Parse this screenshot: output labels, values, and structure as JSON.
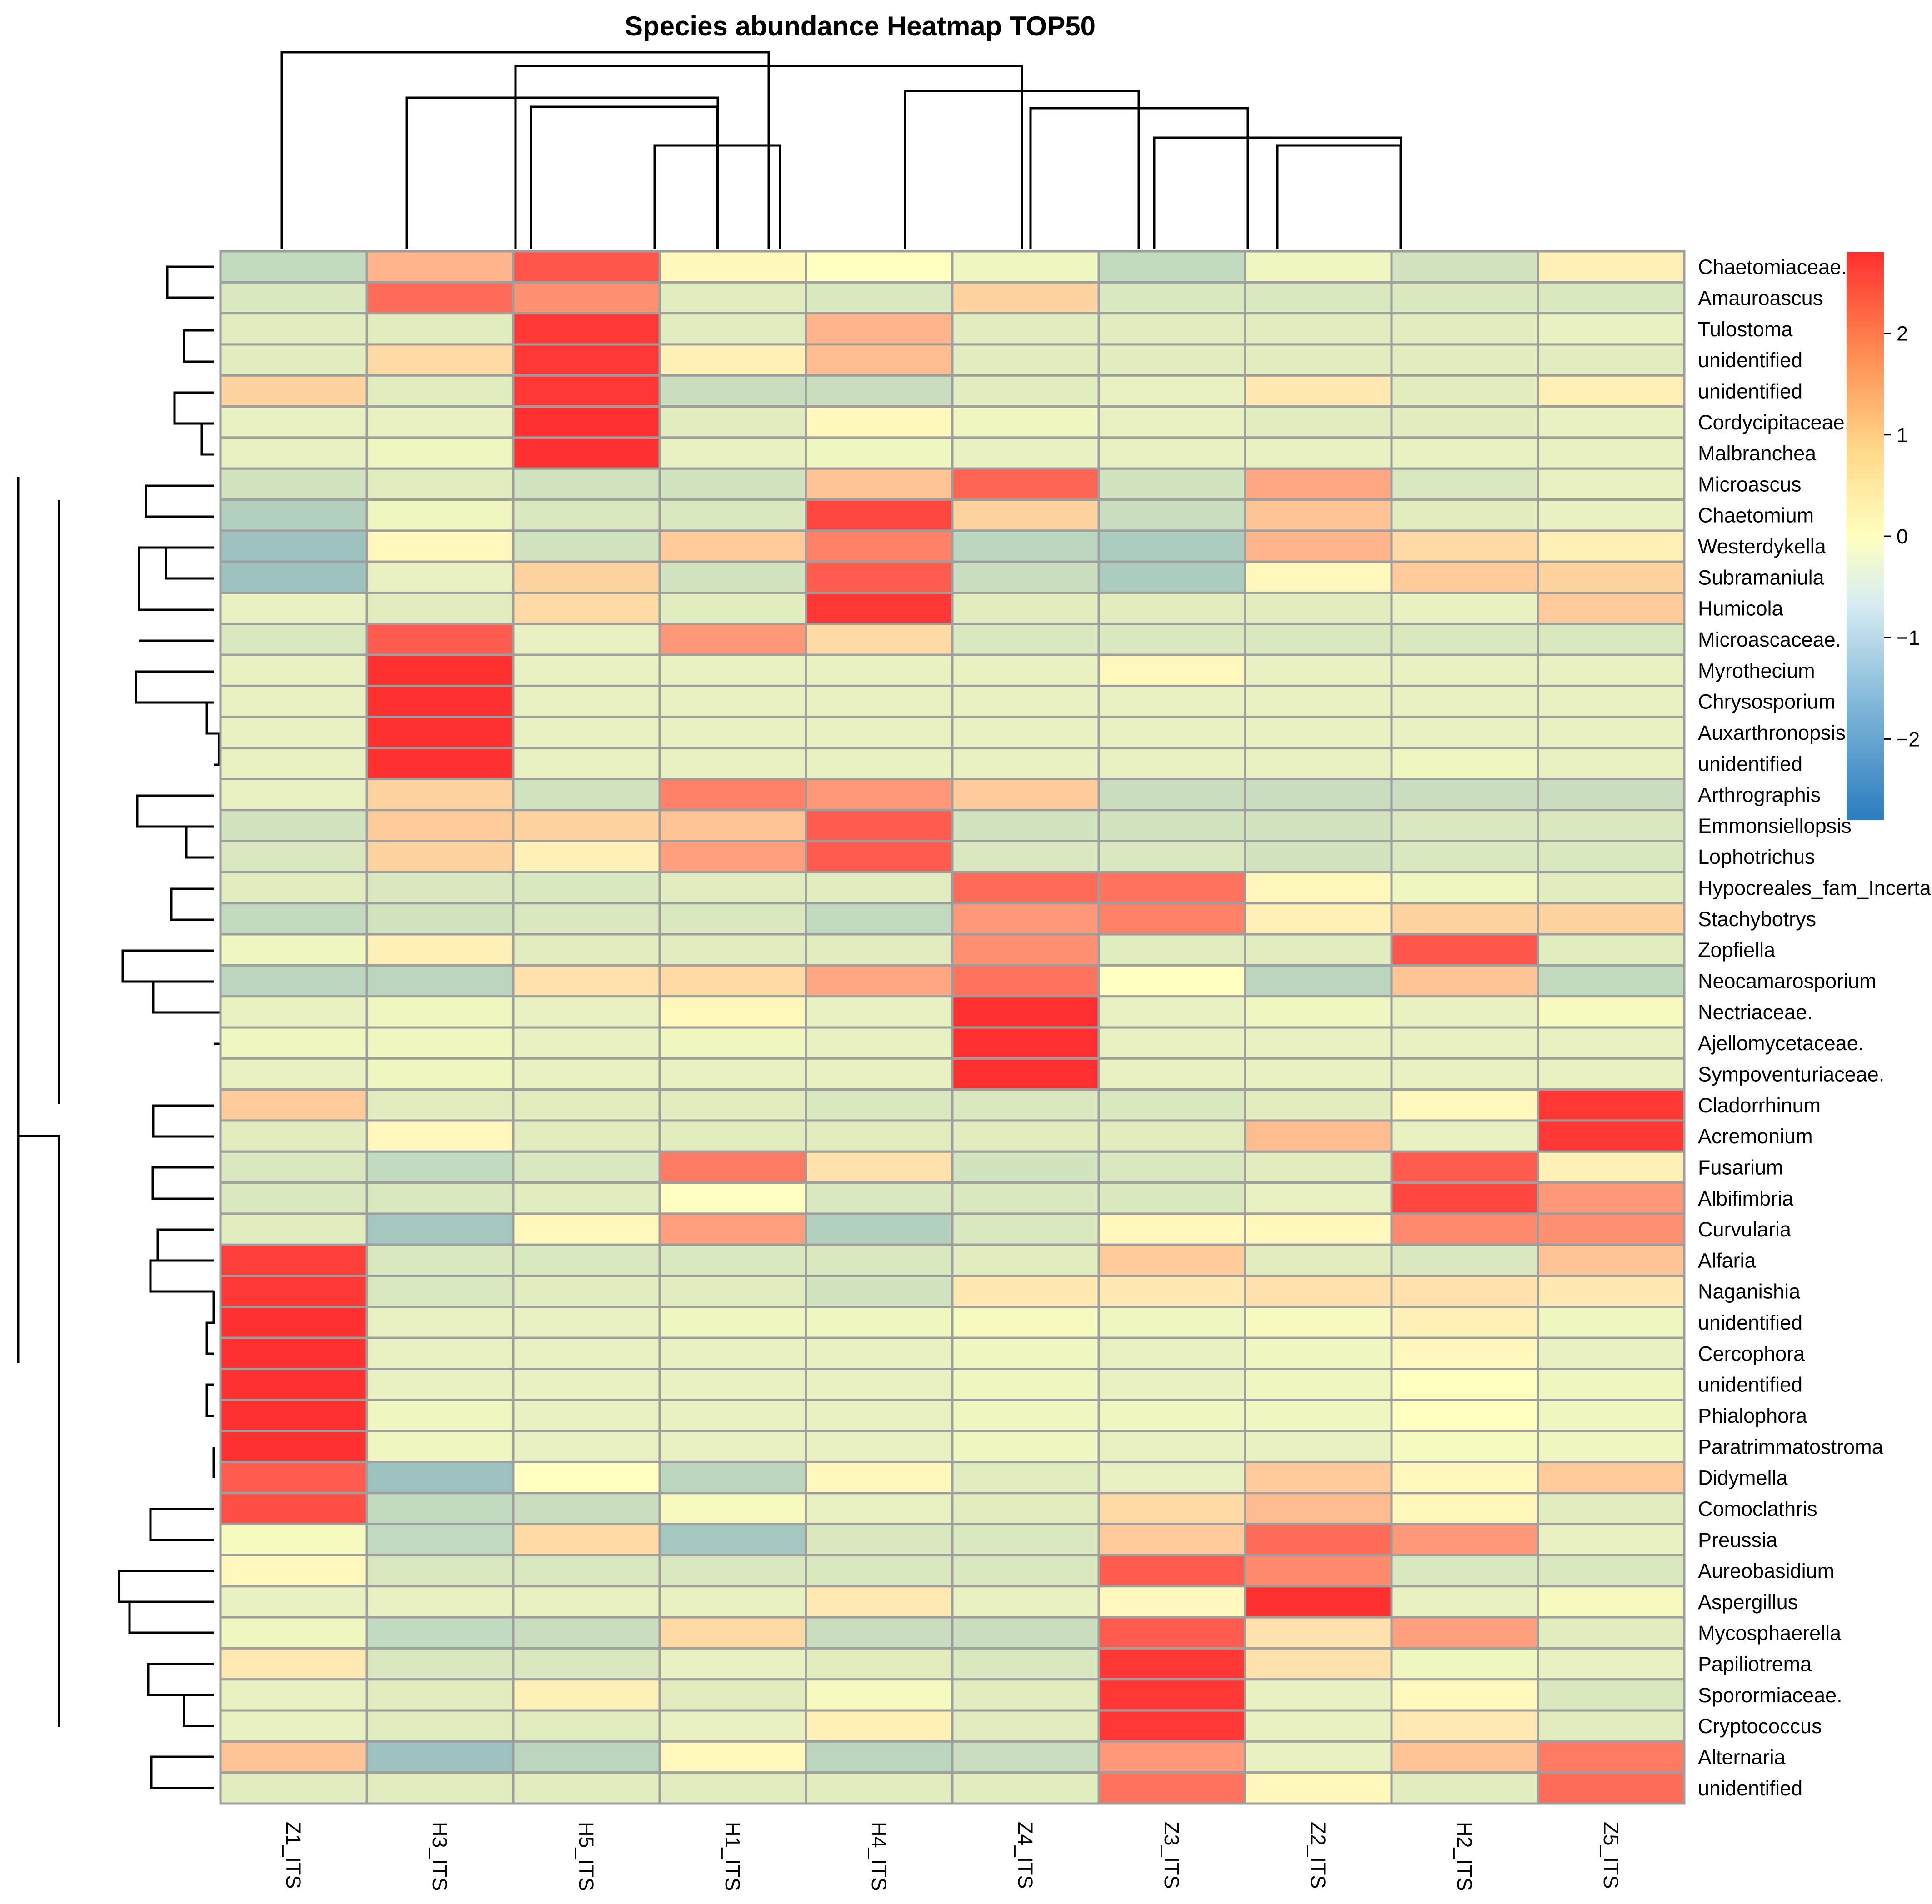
{
  "chart_data": {
    "type": "heatmap",
    "title": "Species abundance Heatmap TOP50",
    "columns": [
      "Z1_ITS",
      "H3_ITS",
      "H5_ITS",
      "H1_ITS",
      "H4_ITS",
      "Z4_ITS",
      "Z3_ITS",
      "Z2_ITS",
      "H2_ITS",
      "Z5_ITS"
    ],
    "rows": [
      "Chaetomiaceae.",
      "Amauroascus",
      "Tulostoma",
      "unidentified",
      "unidentified",
      "Cordycipitaceae.",
      "Malbranchea",
      "Microascus",
      "Chaetomium",
      "Westerdykella",
      "Subramaniula",
      "Humicola",
      "Microascaceae.",
      "Myrothecium",
      "Chrysosporium",
      "Auxarthronopsis",
      "unidentified",
      "Arthrographis",
      "Emmonsiellopsis",
      "Lophotrichus",
      "Hypocreales_fam_Incertae_sedis.",
      "Stachybotrys",
      "Zopfiella",
      "Neocamarosporium",
      "Nectriaceae.",
      "Ajellomycetaceae.",
      "Sympoventuriaceae.",
      "Cladorrhinum",
      "Acremonium",
      "Fusarium",
      "Albifimbria",
      "Curvularia",
      "Alfaria",
      "Naganishia",
      "unidentified",
      "Cercophora",
      "unidentified",
      "Phialophora",
      "Paratrimmatostroma",
      "Didymella",
      "Comoclathris",
      "Preussia",
      "Aureobasidium",
      "Aspergillus",
      "Mycosphaerella",
      "Papiliotrema",
      "Sporormiaceae.",
      "Cryptococcus",
      "Alternaria",
      "unidentified"
    ],
    "values": [
      [
        -0.8,
        1.0,
        2.3,
        0.1,
        0.0,
        -0.2,
        -0.8,
        -0.2,
        -0.6,
        0.2
      ],
      [
        -0.5,
        2.0,
        1.5,
        -0.4,
        -0.5,
        0.6,
        -0.5,
        -0.5,
        -0.5,
        -0.5
      ],
      [
        -0.4,
        -0.4,
        2.7,
        -0.4,
        1.0,
        -0.4,
        -0.4,
        -0.4,
        -0.4,
        -0.3
      ],
      [
        -0.4,
        0.5,
        2.7,
        0.2,
        0.9,
        -0.4,
        -0.4,
        -0.4,
        -0.4,
        -0.4
      ],
      [
        0.6,
        -0.4,
        2.7,
        -0.7,
        -0.7,
        -0.4,
        -0.3,
        0.3,
        -0.4,
        0.2
      ],
      [
        -0.3,
        -0.3,
        2.8,
        -0.4,
        0.1,
        -0.2,
        -0.3,
        -0.4,
        -0.4,
        -0.3
      ],
      [
        -0.3,
        -0.2,
        2.8,
        -0.3,
        -0.2,
        -0.3,
        -0.3,
        -0.3,
        -0.3,
        -0.3
      ],
      [
        -0.6,
        -0.4,
        -0.6,
        -0.6,
        0.8,
        2.1,
        -0.6,
        1.2,
        -0.5,
        -0.3
      ],
      [
        -1.0,
        -0.2,
        -0.5,
        -0.5,
        2.5,
        0.6,
        -0.7,
        0.8,
        -0.4,
        -0.3
      ],
      [
        -1.3,
        0.1,
        -0.6,
        0.7,
        1.7,
        -0.9,
        -1.1,
        1.0,
        0.5,
        0.2
      ],
      [
        -1.3,
        -0.3,
        0.6,
        -0.6,
        2.2,
        -0.7,
        -1.1,
        0.1,
        0.7,
        0.6
      ],
      [
        -0.3,
        -0.4,
        0.5,
        -0.4,
        2.7,
        -0.4,
        -0.4,
        -0.4,
        -0.3,
        0.7
      ],
      [
        -0.5,
        2.2,
        -0.3,
        1.4,
        0.5,
        -0.5,
        -0.5,
        -0.5,
        -0.5,
        -0.5
      ],
      [
        -0.3,
        2.8,
        -0.3,
        -0.3,
        -0.3,
        -0.3,
        0.1,
        -0.3,
        -0.3,
        -0.3
      ],
      [
        -0.3,
        2.8,
        -0.3,
        -0.3,
        -0.3,
        -0.3,
        -0.3,
        -0.3,
        -0.3,
        -0.3
      ],
      [
        -0.3,
        2.8,
        -0.3,
        -0.3,
        -0.3,
        -0.3,
        -0.3,
        -0.3,
        -0.3,
        -0.3
      ],
      [
        -0.3,
        2.8,
        -0.3,
        -0.3,
        -0.3,
        -0.3,
        -0.3,
        -0.3,
        -0.2,
        -0.3
      ],
      [
        -0.3,
        0.6,
        -0.6,
        1.7,
        1.4,
        0.7,
        -0.7,
        -0.7,
        -0.7,
        -0.7
      ],
      [
        -0.6,
        0.7,
        0.6,
        0.8,
        2.2,
        -0.6,
        -0.6,
        -0.6,
        -0.5,
        -0.5
      ],
      [
        -0.5,
        0.6,
        0.2,
        1.3,
        2.2,
        -0.5,
        -0.5,
        -0.6,
        -0.5,
        -0.5
      ],
      [
        -0.4,
        -0.5,
        -0.5,
        -0.4,
        -0.4,
        2.0,
        1.9,
        0.1,
        -0.2,
        -0.4
      ],
      [
        -0.8,
        -0.6,
        -0.5,
        -0.5,
        -0.8,
        1.4,
        1.7,
        0.2,
        0.6,
        0.6
      ],
      [
        -0.2,
        0.2,
        -0.4,
        -0.4,
        -0.4,
        1.5,
        -0.4,
        -0.4,
        2.3,
        -0.4
      ],
      [
        -0.9,
        -0.9,
        0.4,
        0.5,
        1.2,
        1.9,
        0.0,
        -0.9,
        0.8,
        -0.8
      ],
      [
        -0.3,
        -0.2,
        -0.3,
        0.1,
        -0.3,
        2.8,
        -0.3,
        -0.2,
        -0.3,
        -0.1
      ],
      [
        -0.2,
        -0.2,
        -0.3,
        -0.2,
        -0.3,
        2.8,
        -0.3,
        -0.3,
        -0.3,
        -0.3
      ],
      [
        -0.3,
        -0.2,
        -0.3,
        -0.3,
        -0.3,
        2.8,
        -0.3,
        -0.3,
        -0.3,
        -0.3
      ],
      [
        0.7,
        -0.4,
        -0.4,
        -0.4,
        -0.5,
        -0.5,
        -0.5,
        -0.4,
        0.1,
        2.7
      ],
      [
        -0.4,
        0.1,
        -0.4,
        -0.4,
        -0.4,
        -0.4,
        -0.4,
        0.9,
        -0.3,
        2.7
      ],
      [
        -0.5,
        -0.8,
        -0.5,
        1.8,
        0.4,
        -0.6,
        -0.5,
        -0.4,
        2.2,
        0.2
      ],
      [
        -0.5,
        -0.5,
        -0.4,
        0.0,
        -0.5,
        -0.5,
        -0.5,
        -0.3,
        2.5,
        1.4
      ],
      [
        -0.4,
        -1.2,
        0.1,
        1.3,
        -1.0,
        -0.5,
        0.1,
        0.1,
        1.6,
        1.5
      ],
      [
        2.6,
        -0.5,
        -0.5,
        -0.5,
        -0.5,
        -0.4,
        0.7,
        -0.4,
        -0.5,
        0.8
      ],
      [
        2.7,
        -0.5,
        -0.4,
        -0.4,
        -0.6,
        0.3,
        0.3,
        0.4,
        0.4,
        0.3
      ],
      [
        2.8,
        -0.3,
        -0.3,
        -0.2,
        -0.2,
        -0.1,
        -0.2,
        -0.1,
        0.2,
        -0.2
      ],
      [
        2.8,
        -0.3,
        -0.3,
        -0.3,
        -0.3,
        -0.2,
        -0.3,
        -0.2,
        0.1,
        -0.3
      ],
      [
        2.8,
        -0.3,
        -0.3,
        -0.3,
        -0.3,
        -0.2,
        -0.3,
        -0.2,
        0.0,
        -0.2
      ],
      [
        2.8,
        -0.2,
        -0.3,
        -0.3,
        -0.3,
        -0.2,
        -0.2,
        -0.2,
        0.0,
        -0.2
      ],
      [
        2.8,
        -0.2,
        -0.3,
        -0.3,
        -0.3,
        -0.2,
        -0.3,
        -0.3,
        -0.1,
        -0.2
      ],
      [
        2.2,
        -1.3,
        0.0,
        -0.9,
        0.1,
        -0.4,
        -0.3,
        0.7,
        0.1,
        0.7
      ],
      [
        2.4,
        -0.8,
        -0.7,
        -0.1,
        -0.3,
        -0.4,
        0.5,
        0.9,
        0.1,
        -0.4
      ],
      [
        -0.1,
        -0.8,
        0.5,
        -1.2,
        -0.5,
        -0.5,
        0.7,
        2.0,
        1.4,
        -0.3
      ],
      [
        0.1,
        -0.5,
        -0.5,
        -0.5,
        -0.5,
        -0.5,
        2.2,
        1.6,
        -0.5,
        -0.5
      ],
      [
        -0.3,
        -0.3,
        -0.3,
        -0.3,
        0.3,
        -0.3,
        0.1,
        2.8,
        -0.3,
        -0.1
      ],
      [
        -0.2,
        -0.8,
        -0.7,
        0.5,
        -0.7,
        -0.7,
        2.2,
        0.4,
        1.3,
        -0.4
      ],
      [
        0.3,
        -0.5,
        -0.5,
        -0.3,
        -0.4,
        -0.5,
        2.7,
        0.4,
        -0.2,
        -0.3
      ],
      [
        -0.3,
        -0.4,
        0.2,
        -0.4,
        -0.1,
        -0.4,
        2.7,
        -0.3,
        0.1,
        -0.5
      ],
      [
        -0.3,
        -0.4,
        -0.4,
        -0.3,
        0.2,
        -0.4,
        2.7,
        -0.3,
        0.3,
        -0.4
      ],
      [
        0.8,
        -1.3,
        -0.9,
        0.1,
        -0.9,
        -0.7,
        1.4,
        -0.3,
        0.8,
        1.8
      ],
      [
        -0.4,
        -0.4,
        -0.4,
        -0.4,
        -0.4,
        -0.4,
        1.9,
        0.1,
        -0.4,
        2.0
      ]
    ],
    "colorscale": [
      "#2b7cbf",
      "#ffffbf",
      "#ff3030"
    ],
    "color_range": [
      -2.8,
      2.8
    ],
    "legend_ticks": [
      2,
      1,
      0,
      -1,
      -2
    ],
    "legend_placement": "top-right",
    "row_dendrogram": true,
    "column_dendrogram": true
  }
}
